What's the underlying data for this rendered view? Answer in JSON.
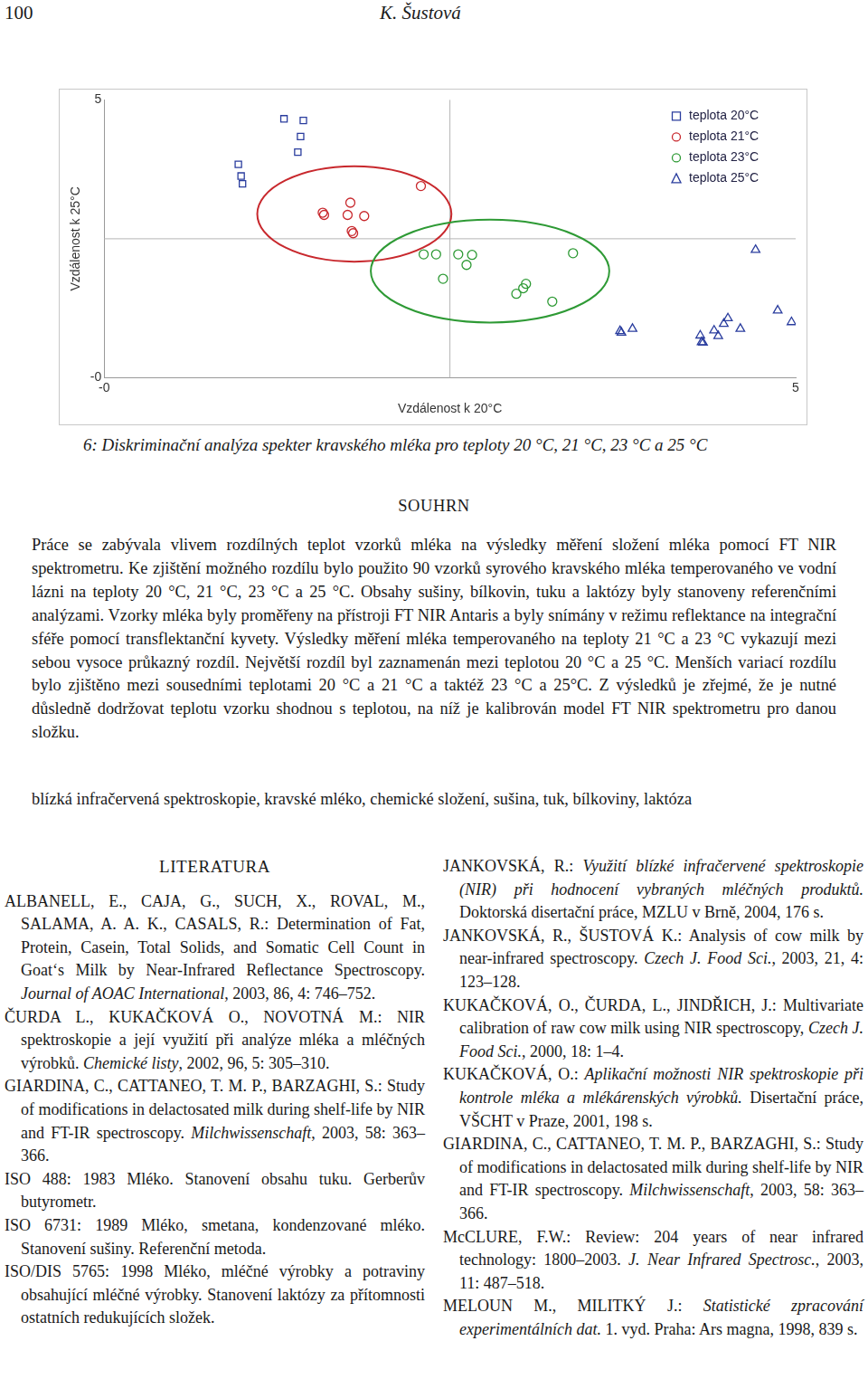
{
  "header": {
    "page": "100",
    "author": "K. Šustová"
  },
  "chart_data": {
    "type": "scatter",
    "x_label": "Vzdálenost k 20°C",
    "y_label": "Vzdálenost k 25°C",
    "xlim": [
      0,
      5
    ],
    "ylim": [
      0,
      5
    ],
    "xticks": [
      {
        "value": 0,
        "label": "-0"
      },
      5
    ],
    "yticks": [
      {
        "value": 0,
        "label": "-0"
      },
      5
    ],
    "grid": false,
    "legend": "upper right",
    "series": [
      {
        "name": "teplota 20°C",
        "color": "#2a3d9e",
        "marker": "square",
        "x": [
          0.97,
          0.99,
          1.0,
          1.3,
          1.44,
          1.42,
          1.4
        ],
        "values": [
          3.84,
          3.63,
          3.49,
          4.66,
          4.63,
          4.34,
          4.06
        ]
      },
      {
        "name": "teplota 21°C",
        "color": "#c8282d",
        "marker": "circle",
        "x": [
          1.58,
          1.59,
          1.78,
          1.76,
          1.88,
          1.79,
          1.8,
          2.29
        ],
        "values": [
          2.97,
          2.93,
          3.15,
          2.93,
          2.91,
          2.64,
          2.6,
          3.45
        ]
      },
      {
        "name": "teplota 23°C",
        "color": "#2e9a35",
        "marker": "circle",
        "x": [
          2.31,
          2.4,
          2.56,
          2.66,
          2.45,
          2.62,
          3.39,
          3.05,
          3.03,
          2.98,
          3.24
        ],
        "values": [
          2.22,
          2.22,
          2.22,
          2.21,
          1.78,
          2.03,
          2.24,
          1.69,
          1.61,
          1.51,
          1.37
        ]
      },
      {
        "name": "teplota 25°C",
        "color": "#2a3d9e",
        "marker": "triangle",
        "x": [
          3.73,
          3.74,
          3.82,
          4.31,
          4.32,
          4.33,
          4.41,
          4.44,
          4.48,
          4.51,
          4.6,
          4.71,
          4.87,
          4.97
        ],
        "values": [
          0.84,
          0.81,
          0.88,
          0.76,
          0.64,
          0.63,
          0.85,
          0.75,
          0.97,
          1.07,
          0.88,
          2.3,
          1.21,
          1.0
        ]
      }
    ]
  },
  "figure_caption": "6: Diskriminační analýza spekter kravského mléka pro teploty 20 °C, 21 °C, 23 °C a 25 °C",
  "summary": {
    "heading": "SOUHRN",
    "text": "Práce se zabývala vlivem rozdílných teplot vzorků mléka na výsledky měření složení mléka pomocí FT NIR spektrometru. Ke zjištění možného rozdílu bylo použito 90 vzorků syrového kravského mléka temperovaného ve vodní lázni na teploty 20 °C, 21 °C, 23 °C a 25 °C. Obsahy sušiny, bílkovin, tuku a laktózy byly stanoveny referenčními analýzami. Vzorky mléka byly proměřeny na přístroji FT NIR Antaris a byly snímány v režimu reflektance na integrační sféře pomocí transflektanční kyvety. Výsledky měření mléka temperovaného na teploty 21 °C a 23 °C vykazují mezi sebou vysoce průkazný rozdíl. Největší rozdíl byl zaznamenán mezi teplotou 20 °C a 25 °C. Menších variací rozdílu bylo zjištěno mezi sousedními teplotami 20 °C a 21 °C a taktéž 23 °C a 25°C. Z výsledků je zřejmé, že je nutné důsledně dodržovat teplotu vzorku shodnou s teplotou, na níž je kalibrován model FT NIR spektrometru pro danou složku."
  },
  "keywords": "blízká infračervená spektroskopie, kravské mléko, chemické složení, sušina, tuk, bílkoviny, laktóza",
  "references": {
    "heading": "LITERATURA",
    "columns": [
      [
        [
          {
            "text": "ALBANELL, E., CAJA, G., SUCH, X., ROVAL, M., SALAMA, A. A. K., CASALS, R.: Determination of Fat, Protein, Casein, Total Solids, and Somatic Cell Count in Goat‘s Milk by Near-Infrared Reflectance Spectroscopy. "
          },
          {
            "text": "Journal of AOAC International",
            "em": true
          },
          {
            "text": ", 2003, 86, 4: 746–752."
          }
        ],
        [
          {
            "text": "ČURDA L., KUKAČKOVÁ O., NOVOTNÁ M.: NIR spektroskopie a její využití při analýze mléka a mléčných výrobků. "
          },
          {
            "text": "Chemické listy",
            "em": true
          },
          {
            "text": ", 2002, 96, 5: 305–310."
          }
        ],
        [
          {
            "text": "GIARDINA, C., CATTANEO, T. M. P., BARZAGHI, S.: Study of modifications in delactosated milk during shelf-life by NIR and FT-IR spectroscopy. "
          },
          {
            "text": "Milchwissenschaft",
            "em": true
          },
          {
            "text": ", 2003, 58: 363–366."
          }
        ],
        [
          {
            "text": "ISO 488: 1983 Mléko. Stanovení obsahu tuku. Gerberův butyrometr."
          }
        ],
        [
          {
            "text": "ISO 6731: 1989 Mléko, smetana, kondenzované mléko. Stanovení sušiny. Referenční metoda."
          }
        ],
        [
          {
            "text": "ISO/DIS 5765: 1998 Mléko, mléčné výrobky a potraviny obsahující mléčné výrobky. Stanovení laktózy za přítomnosti ostatních redukujících složek."
          }
        ]
      ],
      [
        [
          {
            "text": "JANKOVSKÁ, R.: "
          },
          {
            "text": "Využití blízké infračervené spektroskopie (NIR) při hodnocení vybraných mléčných produktů.",
            "em": true
          },
          {
            "text": " Doktorská disertační práce, MZLU v Brně, 2004, 176 s."
          }
        ],
        [
          {
            "text": "JANKOVSKÁ, R., ŠUSTOVÁ K.: Analysis of cow milk by near-infrared spectroscopy. "
          },
          {
            "text": "Czech J. Food Sci.",
            "em": true
          },
          {
            "text": ", 2003, 21, 4: 123–128."
          }
        ],
        [
          {
            "text": "KUKAČKOVÁ, O., ČURDA, L., JINDŘICH, J.: Multivariate calibration of raw cow milk using NIR spectroscopy, "
          },
          {
            "text": "Czech J. Food Sci.",
            "em": true
          },
          {
            "text": ", 2000, 18: 1–4."
          }
        ],
        [
          {
            "text": "KUKAČKOVÁ, O.: "
          },
          {
            "text": "Aplikační možnosti NIR spektroskopie při kontrole mléka a mlékárenských výrobků.",
            "em": true
          },
          {
            "text": " Disertační práce, VŠCHT v Praze, 2001, 198 s."
          }
        ],
        [
          {
            "text": "GIARDINA, C., CATTANEO, T. M. P., BARZAGHI, S.: Study of modifications in delactosated milk during shelf-life by NIR and FT-IR spectroscopy. "
          },
          {
            "text": "Milchwissenschaft",
            "em": true
          },
          {
            "text": ", 2003, 58: 363–366."
          }
        ],
        [
          {
            "text": "McCLURE, F.W.: Review: 204 years of near infrared technology: 1800–2003. "
          },
          {
            "text": "J. Near Infrared Spectrosc.",
            "em": true
          },
          {
            "text": ", 2003, 11: 487–518."
          }
        ],
        [
          {
            "text": "MELOUN M., MILITKÝ J.: "
          },
          {
            "text": "Statistické zpracování experimentálních dat.",
            "em": true
          },
          {
            "text": " 1. vyd. Praha: Ars magna, 1998, 839 s."
          }
        ]
      ]
    ]
  }
}
